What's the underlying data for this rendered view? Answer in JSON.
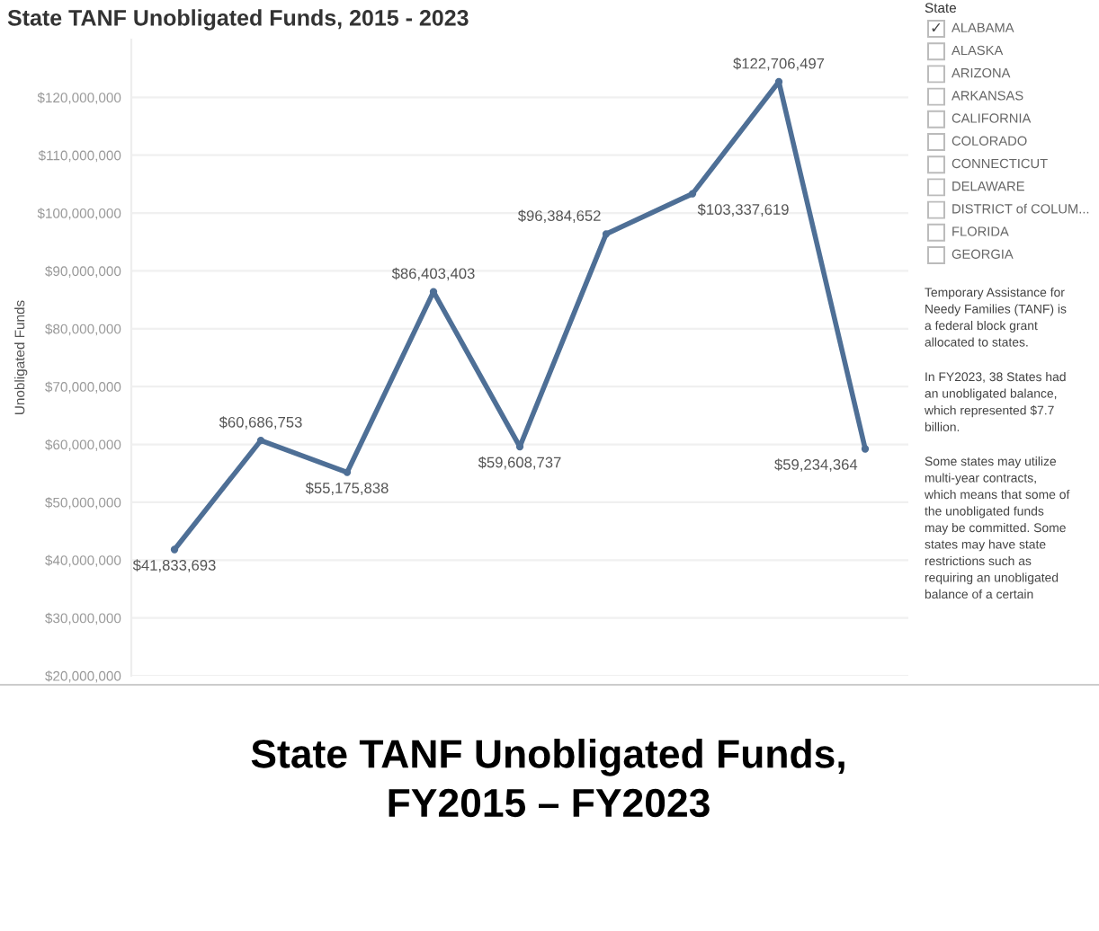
{
  "chart_data": {
    "type": "line",
    "title": "State TANF Unobligated Funds, 2015 - 2023",
    "ylabel": "Unobligated Funds",
    "categories": [
      null,
      null,
      null,
      null,
      null,
      null,
      null,
      null,
      null
    ],
    "series": [
      {
        "color": "#4e6f96",
        "values": [
          41833693,
          60686753,
          55175838,
          86403403,
          59608737,
          96384652,
          103337619,
          122706497,
          59234364
        ]
      }
    ],
    "value_labels": [
      "$41,833,693",
      "$60,686,753",
      "$55,175,838",
      "$86,403,403",
      "$59,608,737",
      "$96,384,652",
      "$103,337,619",
      "$122,706,497",
      "$59,234,364"
    ],
    "marker": "circle",
    "line_style": "solid",
    "grid": "y",
    "ylim": [
      20000000,
      130000000
    ],
    "yticks": [
      {
        "value": 20000000,
        "label": "$20,000,000"
      },
      {
        "value": 30000000,
        "label": "$30,000,000"
      },
      {
        "value": 40000000,
        "label": "$40,000,000"
      },
      {
        "value": 50000000,
        "label": "$50,000,000"
      },
      {
        "value": 60000000,
        "label": "$60,000,000"
      },
      {
        "value": 70000000,
        "label": "$70,000,000"
      },
      {
        "value": 80000000,
        "label": "$80,000,000"
      },
      {
        "value": 90000000,
        "label": "$90,000,000"
      },
      {
        "value": 100000000,
        "label": "$100,000,000"
      },
      {
        "value": 110000000,
        "label": "$110,000,000"
      },
      {
        "value": 120000000,
        "label": "$120,000,000"
      }
    ],
    "annotations": [
      "State",
      "✓",
      "ALABAMA",
      "ALASKA",
      "ARIZONA",
      "ARKANSAS",
      "CALIFORNIA",
      "COLORADO",
      "CONNECTICUT",
      "DELAWARE",
      "DISTRICT of COLUM...",
      "FLORIDA",
      "GEORGIA",
      "Temporary Assistance for\nNeedy Families (TANF) is\na federal block grant\nallocated to states.",
      "In FY2023, 38 States had\nan unobligated balance,\nwhich represented $7.7\nbillion.",
      "Some states may utilize\nmulti-year contracts,\nwhich means that some of\nthe unobligated funds\nmay be committed. Some\nstates may have state\nrestrictions such as\nrequiring an unobligated\nbalance of a certain",
      "State TANF Unobligated Funds,\nFY2015 – FY2023"
    ]
  }
}
